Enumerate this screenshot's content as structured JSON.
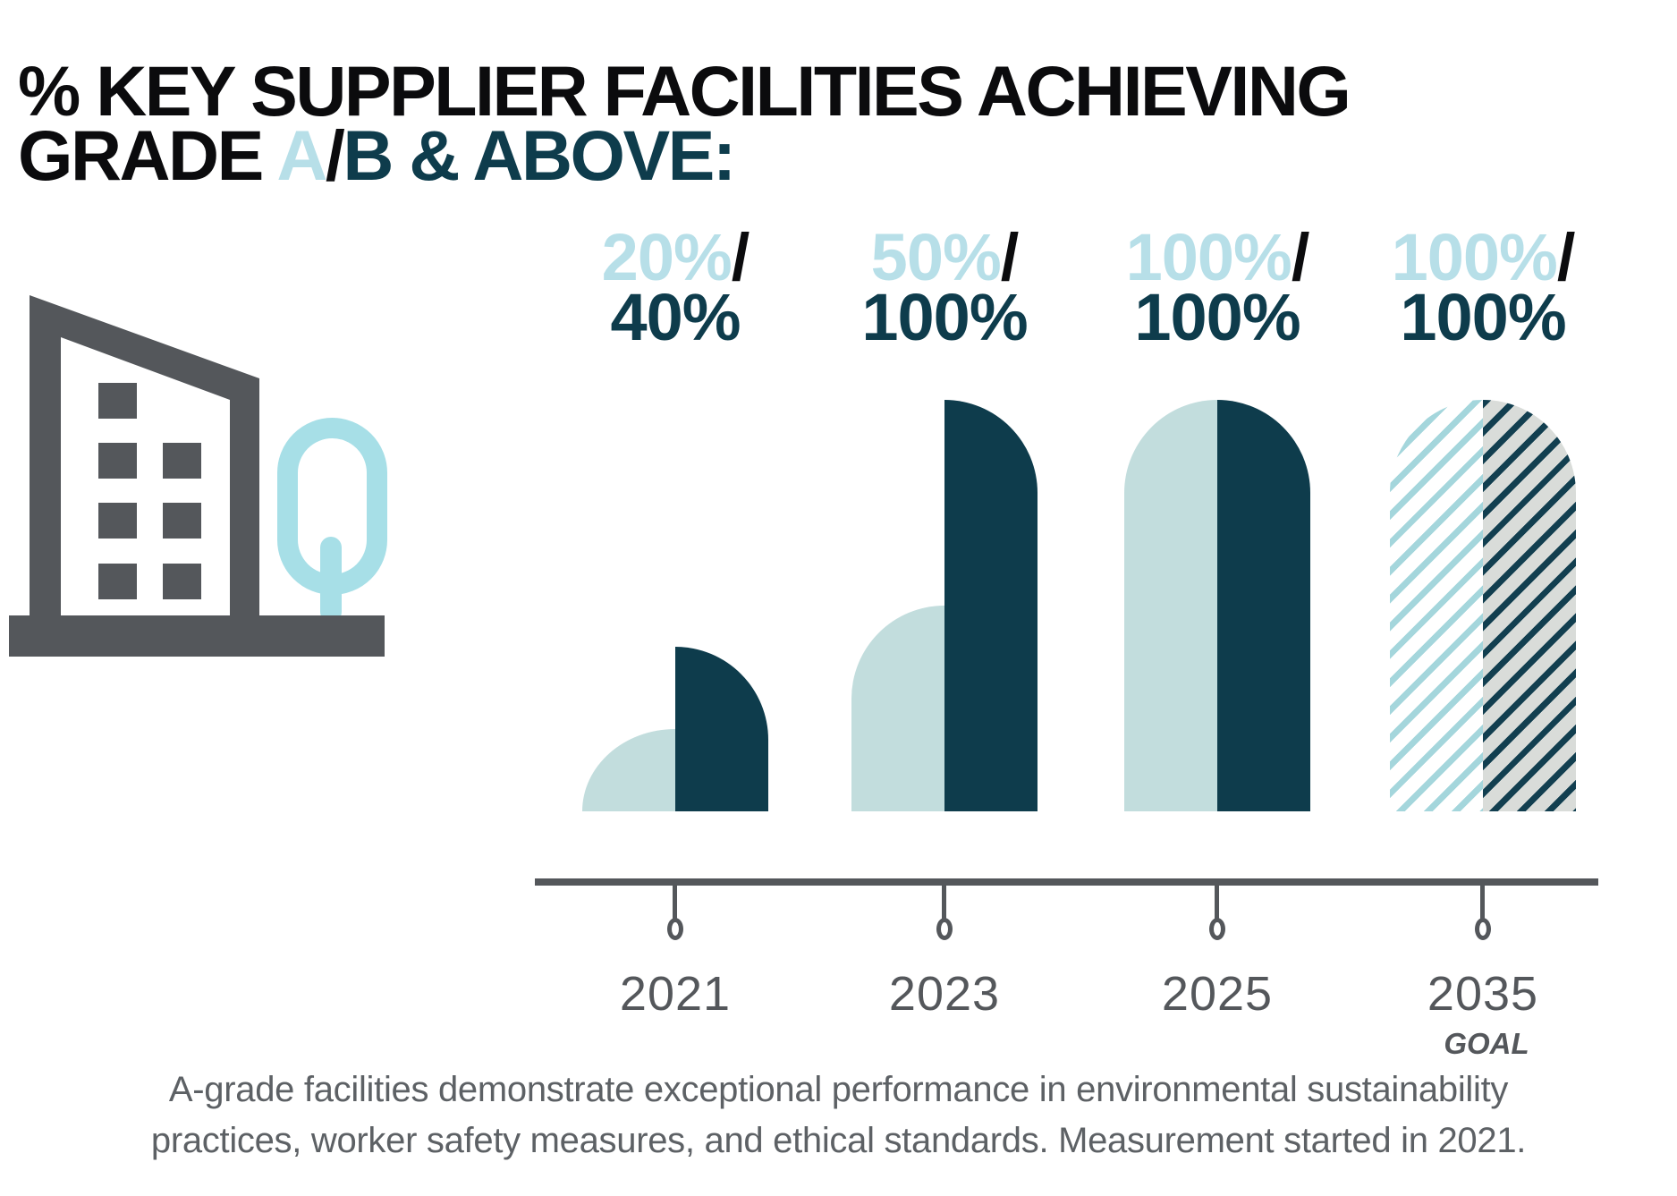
{
  "title": {
    "line1": "% KEY SUPPLIER FACILITIES ACHIEVING",
    "grade": "GRADE ",
    "grade_a": "A",
    "slash": "/",
    "rest": "B & ABOVE:"
  },
  "icon": {
    "name": "building-and-tree-icon"
  },
  "chart_data": {
    "type": "bar",
    "title": "% KEY SUPPLIER FACILITIES ACHIEVING GRADE A/B & ABOVE",
    "categories": [
      "2021",
      "2023",
      "2025",
      "2035"
    ],
    "series": [
      {
        "name": "Grade A",
        "values": [
          20,
          50,
          100,
          100
        ]
      },
      {
        "name": "Grade A/B & above",
        "values": [
          40,
          100,
          100,
          100
        ]
      }
    ],
    "labels": [
      [
        "20%",
        "40%"
      ],
      [
        "50%",
        "100%"
      ],
      [
        "100%",
        "100%"
      ],
      [
        "100%",
        "100%"
      ]
    ],
    "slash": "/",
    "goal_category": "2035",
    "goal_label": "GOAL",
    "ylim": [
      0,
      100
    ],
    "grid": false,
    "legend": "none",
    "goal_style": "hatched"
  },
  "footer": {
    "line1": "A-grade facilities demonstrate exceptional performance in environmental sustainability",
    "line2": "practices, worker safety measures, and ethical standards. Measurement started in 2021."
  },
  "colors": {
    "black": "#0b0b0d",
    "dark": "#0e3c4c",
    "light_text": "#b7dfe8",
    "light_bar": "#c2dddd",
    "tree": "#a7dfe7",
    "stripe_light": "#a4d6dc",
    "stripe_dark": "#123f50",
    "hatch_bg": "#d9dcd9",
    "gray": "#54575b",
    "gray_text": "#5d6165"
  }
}
